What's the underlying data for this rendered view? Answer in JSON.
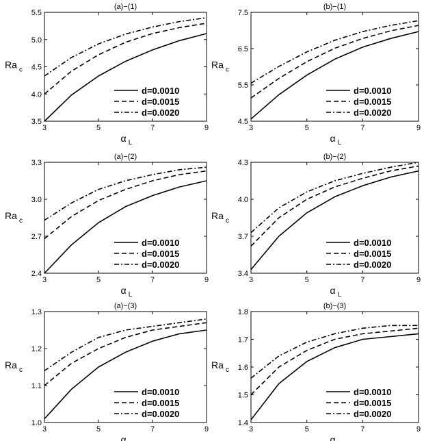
{
  "figure": {
    "panels": [
      {
        "id": "a1",
        "title": "(a)−(1)"
      },
      {
        "id": "b1",
        "title": "(b)−(1)"
      },
      {
        "id": "a2",
        "title": "(a)−(2)"
      },
      {
        "id": "b2",
        "title": "(b)−(2)"
      },
      {
        "id": "a3",
        "title": "(a)−(3)"
      },
      {
        "id": "b3",
        "title": "(b)−(3)"
      }
    ]
  },
  "chart_data": [
    {
      "type": "line",
      "title": "(a)−(1)",
      "xlabel": "α",
      "xlabel_sub": "L",
      "ylabel": "Ra",
      "ylabel_sub": "c",
      "xlim": [
        3,
        9
      ],
      "ylim": [
        3.5,
        5.5
      ],
      "xticks": [
        "3",
        "5",
        "7",
        "9"
      ],
      "yticks": [
        "3.5",
        "4.0",
        "4.5",
        "5.0",
        "5.5"
      ],
      "legend_position": "bottom-right",
      "x": [
        3,
        4,
        5,
        6,
        7,
        8,
        9
      ],
      "series": [
        {
          "name": "d=0.0010",
          "style": "solid",
          "values": [
            3.5,
            3.98,
            4.33,
            4.6,
            4.81,
            4.98,
            5.11
          ]
        },
        {
          "name": "d=0.0015",
          "style": "dashed",
          "values": [
            4.0,
            4.42,
            4.72,
            4.95,
            5.11,
            5.22,
            5.3
          ]
        },
        {
          "name": "d=0.0020",
          "style": "dashdot",
          "values": [
            4.33,
            4.67,
            4.92,
            5.1,
            5.23,
            5.33,
            5.4
          ]
        }
      ]
    },
    {
      "type": "line",
      "title": "(b)−(1)",
      "xlabel": "α",
      "xlabel_sub": "L",
      "ylabel": "Ra",
      "ylabel_sub": "c",
      "xlim": [
        3,
        9
      ],
      "ylim": [
        4.5,
        7.5
      ],
      "xticks": [
        "3",
        "5",
        "7",
        "9"
      ],
      "yticks": [
        "4.5",
        "5.5",
        "6.5",
        "7.5"
      ],
      "legend_position": "bottom-right",
      "x": [
        3,
        4,
        5,
        6,
        7,
        8,
        9
      ],
      "series": [
        {
          "name": "d=0.0010",
          "style": "solid",
          "values": [
            4.56,
            5.23,
            5.77,
            6.21,
            6.54,
            6.78,
            6.97
          ]
        },
        {
          "name": "d=0.0015",
          "style": "dashed",
          "values": [
            5.14,
            5.68,
            6.14,
            6.51,
            6.78,
            6.99,
            7.14
          ]
        },
        {
          "name": "d=0.0020",
          "style": "dashdot",
          "values": [
            5.55,
            6.01,
            6.41,
            6.73,
            6.97,
            7.14,
            7.27
          ]
        }
      ]
    },
    {
      "type": "line",
      "title": "(a)−(2)",
      "xlabel": "α",
      "xlabel_sub": "L",
      "ylabel": "Ra",
      "ylabel_sub": "c",
      "xlim": [
        3,
        9
      ],
      "ylim": [
        2.4,
        3.3
      ],
      "xticks": [
        "3",
        "5",
        "7",
        "9"
      ],
      "yticks": [
        "2.4",
        "2.7",
        "3.0",
        "3.3"
      ],
      "legend_position": "bottom-right",
      "x": [
        3,
        4,
        5,
        6,
        7,
        8,
        9
      ],
      "series": [
        {
          "name": "d=0.0010",
          "style": "solid",
          "values": [
            2.4,
            2.63,
            2.81,
            2.94,
            3.03,
            3.1,
            3.15
          ]
        },
        {
          "name": "d=0.0015",
          "style": "dashed",
          "values": [
            2.68,
            2.86,
            2.99,
            3.08,
            3.15,
            3.2,
            3.23
          ]
        },
        {
          "name": "d=0.0020",
          "style": "dashdot",
          "values": [
            2.83,
            2.97,
            3.08,
            3.15,
            3.2,
            3.24,
            3.26
          ]
        }
      ]
    },
    {
      "type": "line",
      "title": "(b)−(2)",
      "xlabel": "α",
      "xlabel_sub": "L",
      "ylabel": "Ra",
      "ylabel_sub": "c",
      "xlim": [
        3,
        9
      ],
      "ylim": [
        3.4,
        4.3
      ],
      "xticks": [
        "3",
        "5",
        "7",
        "9"
      ],
      "yticks": [
        "3.4",
        "3.7",
        "4.0",
        "4.3"
      ],
      "legend_position": "bottom-right",
      "x": [
        3,
        4,
        5,
        6,
        7,
        8,
        9
      ],
      "series": [
        {
          "name": "d=0.0010",
          "style": "solid",
          "values": [
            3.43,
            3.7,
            3.89,
            4.02,
            4.11,
            4.18,
            4.23
          ]
        },
        {
          "name": "d=0.0015",
          "style": "dashed",
          "values": [
            3.62,
            3.85,
            4.0,
            4.1,
            4.17,
            4.23,
            4.27
          ]
        },
        {
          "name": "d=0.0020",
          "style": "dashdot",
          "values": [
            3.73,
            3.93,
            4.06,
            4.15,
            4.21,
            4.26,
            4.3
          ]
        }
      ]
    },
    {
      "type": "line",
      "title": "(a)−(3)",
      "xlabel": "α",
      "xlabel_sub": "L",
      "ylabel": "Ra",
      "ylabel_sub": "c",
      "xlim": [
        3,
        9
      ],
      "ylim": [
        1.0,
        1.3
      ],
      "xticks": [
        "3",
        "5",
        "7",
        "9"
      ],
      "yticks": [
        "1.0",
        "1.1",
        "1.2",
        "1.3"
      ],
      "legend_position": "bottom-right",
      "x": [
        3,
        4,
        5,
        6,
        7,
        8,
        9
      ],
      "series": [
        {
          "name": "d=0.0010",
          "style": "solid",
          "values": [
            1.01,
            1.09,
            1.15,
            1.19,
            1.22,
            1.24,
            1.25
          ]
        },
        {
          "name": "d=0.0015",
          "style": "dashed",
          "values": [
            1.1,
            1.16,
            1.2,
            1.23,
            1.25,
            1.26,
            1.27
          ]
        },
        {
          "name": "d=0.0020",
          "style": "dashdot",
          "values": [
            1.14,
            1.19,
            1.23,
            1.25,
            1.26,
            1.27,
            1.28
          ]
        }
      ]
    },
    {
      "type": "line",
      "title": "(b)−(3)",
      "xlabel": "α",
      "xlabel_sub": "L",
      "ylabel": "Ra",
      "ylabel_sub": "c",
      "xlim": [
        3,
        9
      ],
      "ylim": [
        1.4,
        1.8
      ],
      "xticks": [
        "3",
        "5",
        "7",
        "9"
      ],
      "yticks": [
        "1.4",
        "1.5",
        "1.6",
        "1.7",
        "1.8"
      ],
      "legend_position": "bottom-right",
      "x": [
        3,
        4,
        5,
        6,
        7,
        8,
        9
      ],
      "series": [
        {
          "name": "d=0.0010",
          "style": "solid",
          "values": [
            1.41,
            1.54,
            1.62,
            1.67,
            1.7,
            1.71,
            1.72
          ]
        },
        {
          "name": "d=0.0015",
          "style": "dashed",
          "values": [
            1.5,
            1.6,
            1.66,
            1.7,
            1.72,
            1.73,
            1.74
          ]
        },
        {
          "name": "d=0.0020",
          "style": "dashdot",
          "values": [
            1.56,
            1.64,
            1.69,
            1.72,
            1.74,
            1.75,
            1.75
          ]
        }
      ]
    }
  ]
}
